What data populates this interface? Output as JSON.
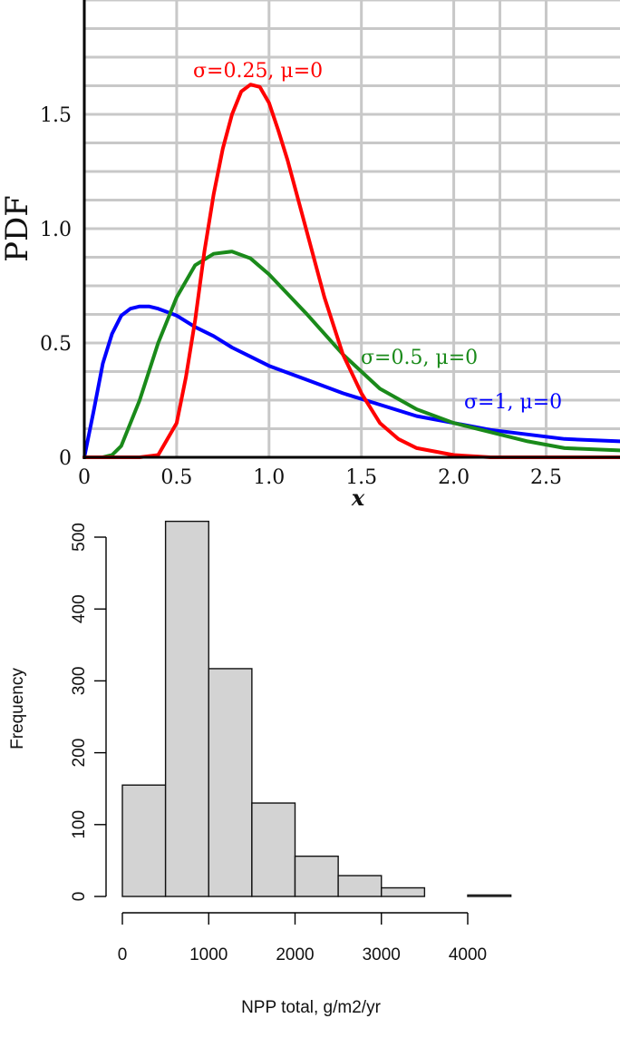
{
  "chart_data": [
    {
      "type": "line",
      "title": "",
      "xlabel": "x",
      "ylabel": "PDF",
      "xlim": [
        0,
        2.9
      ],
      "ylim": [
        0,
        2.0
      ],
      "x_ticks": [
        0,
        0.5,
        1.0,
        1.5,
        2.0,
        2.5
      ],
      "x_tick_labels": [
        "0",
        "0.5",
        "1.0",
        "1.5",
        "2.0",
        "2.5"
      ],
      "y_ticks": [
        0,
        0.5,
        1.0,
        1.5
      ],
      "y_tick_labels": [
        "0",
        "0.5",
        "1.0",
        "1.5"
      ],
      "grid": true,
      "series": [
        {
          "name": "σ=1, μ=0",
          "color": "#0000ff",
          "x": [
            0,
            0.05,
            0.1,
            0.15,
            0.2,
            0.25,
            0.3,
            0.35,
            0.4,
            0.5,
            0.6,
            0.7,
            0.8,
            0.9,
            1.0,
            1.2,
            1.4,
            1.6,
            1.8,
            2.0,
            2.2,
            2.4,
            2.6,
            2.9
          ],
          "values": [
            0,
            0.2,
            0.41,
            0.54,
            0.62,
            0.65,
            0.66,
            0.66,
            0.65,
            0.62,
            0.57,
            0.53,
            0.48,
            0.44,
            0.4,
            0.34,
            0.28,
            0.23,
            0.18,
            0.15,
            0.12,
            0.1,
            0.08,
            0.07
          ]
        },
        {
          "name": "σ=0.5, μ=0",
          "color": "#1a8a1a",
          "x": [
            0,
            0.1,
            0.15,
            0.2,
            0.3,
            0.4,
            0.5,
            0.6,
            0.7,
            0.8,
            0.9,
            1.0,
            1.2,
            1.4,
            1.6,
            1.8,
            2.0,
            2.2,
            2.4,
            2.6,
            2.9
          ],
          "values": [
            0,
            0,
            0.01,
            0.05,
            0.25,
            0.5,
            0.7,
            0.84,
            0.89,
            0.9,
            0.87,
            0.8,
            0.63,
            0.45,
            0.3,
            0.21,
            0.15,
            0.11,
            0.07,
            0.04,
            0.03
          ]
        },
        {
          "name": "σ=0.25, μ=0",
          "color": "#ff0000",
          "x": [
            0,
            0.3,
            0.4,
            0.5,
            0.55,
            0.6,
            0.65,
            0.7,
            0.75,
            0.8,
            0.85,
            0.9,
            0.95,
            1.0,
            1.05,
            1.1,
            1.15,
            1.2,
            1.3,
            1.4,
            1.5,
            1.6,
            1.7,
            1.8,
            2.0,
            2.2,
            2.6,
            2.9
          ],
          "values": [
            0,
            0,
            0.01,
            0.15,
            0.35,
            0.6,
            0.9,
            1.15,
            1.35,
            1.5,
            1.6,
            1.63,
            1.62,
            1.55,
            1.43,
            1.3,
            1.15,
            1.0,
            0.7,
            0.45,
            0.28,
            0.15,
            0.08,
            0.04,
            0.01,
            0,
            0,
            0
          ]
        }
      ],
      "annotations": [
        {
          "text": "σ=0.25, μ=0",
          "color": "#ff0000"
        },
        {
          "text": "σ=0.5, μ=0",
          "color": "#1a8a1a"
        },
        {
          "text": "σ=1, μ=0",
          "color": "#0000ff"
        }
      ]
    },
    {
      "type": "bar",
      "title": "",
      "xlabel": "NPP total, g/m2/yr",
      "ylabel": "Frequency",
      "bin_edges": [
        0,
        500,
        1000,
        1500,
        2000,
        2500,
        3000,
        3500,
        4000,
        4500
      ],
      "values": [
        155,
        522,
        317,
        130,
        56,
        29,
        12,
        0,
        2
      ],
      "xlim": [
        0,
        4500
      ],
      "ylim": [
        0,
        522
      ],
      "x_ticks": [
        0,
        1000,
        2000,
        3000,
        4000
      ],
      "x_tick_labels": [
        "0",
        "1000",
        "2000",
        "3000",
        "4000"
      ],
      "y_ticks": [
        0,
        100,
        200,
        300,
        400,
        500
      ],
      "y_tick_labels": [
        "0",
        "100",
        "200",
        "300",
        "400",
        "500"
      ],
      "grid": false,
      "bar_color": "#d3d3d3"
    }
  ]
}
